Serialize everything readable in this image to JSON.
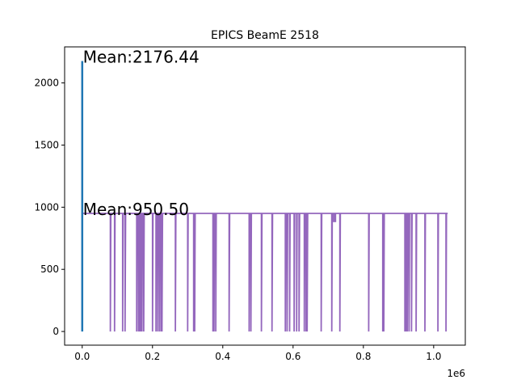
{
  "chart_data": {
    "type": "line",
    "title": "EPICS BeamE 2518",
    "xlabel": "",
    "ylabel": "",
    "x_scale_label": "1e6",
    "xlim": [
      -50000,
      1090000
    ],
    "ylim": [
      -110,
      2290
    ],
    "x_ticks": [
      0,
      200000,
      400000,
      600000,
      800000,
      1000000
    ],
    "x_tick_labels": [
      "0.0",
      "0.2",
      "0.4",
      "0.6",
      "0.8",
      "1.0"
    ],
    "y_ticks": [
      0,
      500,
      1000,
      1500,
      2000
    ],
    "y_tick_labels": [
      "0",
      "500",
      "1000",
      "1500",
      "2000"
    ],
    "grid": false,
    "series": [
      {
        "color": "#1f77b4",
        "x": [
          0,
          0,
          0,
          0
        ],
        "y": [
          0,
          2176,
          0,
          950
        ]
      },
      {
        "color": "#9467bd",
        "baseline": 950,
        "x_range": [
          0,
          1040000
        ],
        "dips_to_zero_at_x": [
          80000,
          92000,
          115000,
          122000,
          155000,
          160000,
          163000,
          166000,
          170000,
          175000,
          200000,
          210000,
          215000,
          220000,
          225000,
          227000,
          265000,
          300000,
          317000,
          320000,
          372000,
          375000,
          380000,
          418000,
          475000,
          480000,
          510000,
          540000,
          578000,
          583000,
          590000,
          603000,
          610000,
          617000,
          632000,
          637000,
          640000,
          680000,
          710000,
          733000,
          815000,
          855000,
          858000,
          918000,
          922000,
          925000,
          930000,
          937000,
          950000,
          975000,
          1012000,
          1035000
        ],
        "small_dips_at_x": [
          715000,
          718000,
          721000
        ]
      }
    ],
    "annotations": [
      {
        "text": "Mean:2176.44",
        "x": 0,
        "y": 2176
      },
      {
        "text": "Mean:950.50",
        "x": 0,
        "y": 950
      }
    ]
  }
}
